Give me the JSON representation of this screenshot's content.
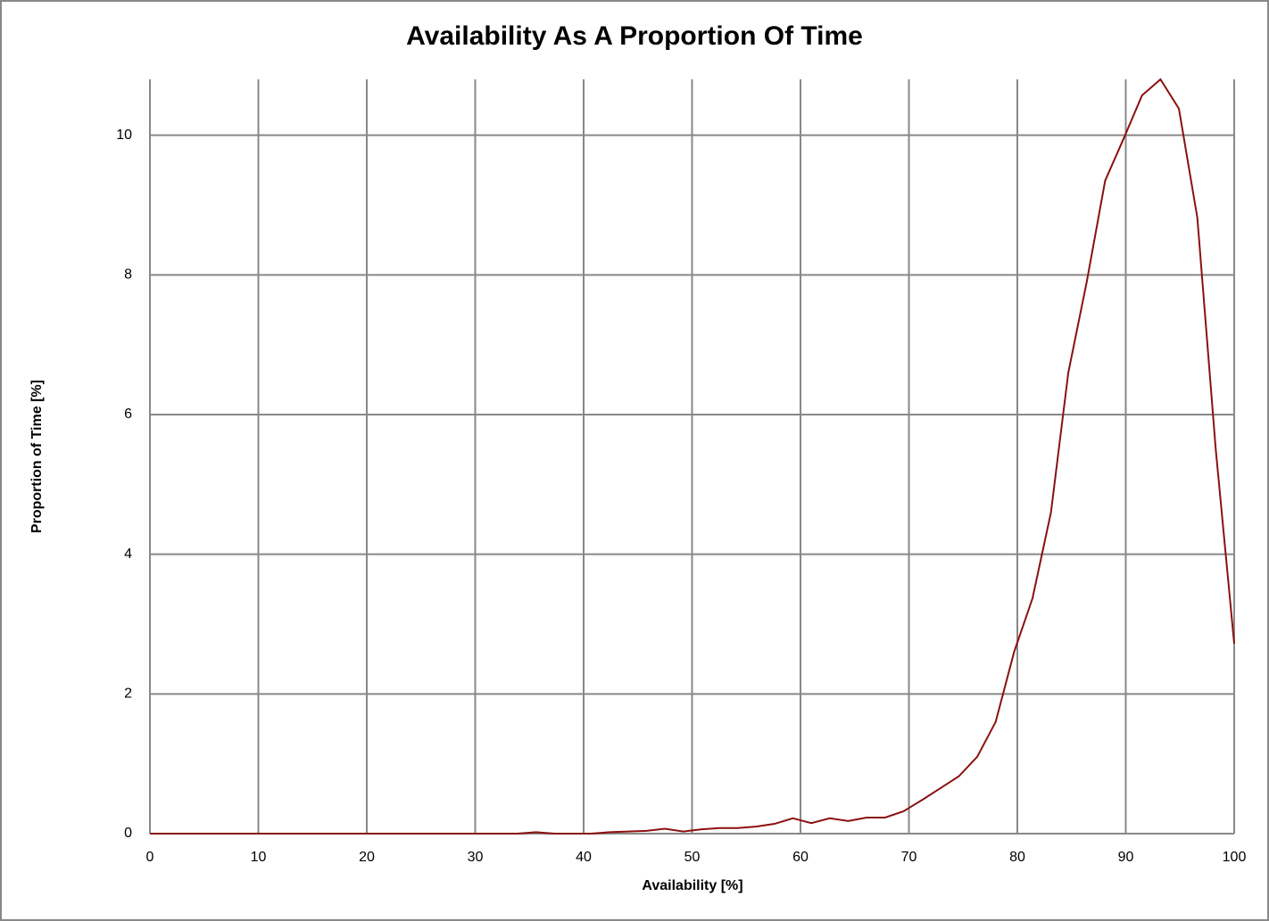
{
  "chart_data": {
    "type": "line",
    "title": "Availability As A Proportion Of Time",
    "x_label": "Availability [%]",
    "y_label": "Proportion of Time [%]",
    "x": [
      0,
      1.7,
      3.4,
      5.1,
      6.8,
      8.5,
      10.2,
      11.9,
      13.6,
      15.3,
      16.9,
      18.6,
      20.3,
      22.0,
      23.7,
      25.4,
      27.1,
      28.8,
      30.5,
      32.2,
      33.9,
      35.6,
      37.3,
      39.0,
      40.7,
      42.4,
      44.1,
      45.8,
      47.5,
      49.2,
      50.8,
      52.5,
      54.2,
      55.9,
      57.6,
      59.3,
      61.0,
      62.7,
      64.4,
      66.1,
      67.8,
      69.5,
      71.2,
      72.9,
      74.6,
      76.3,
      78.0,
      79.7,
      81.4,
      83.1,
      84.7,
      86.4,
      88.1,
      89.8,
      91.5,
      93.2,
      94.9,
      96.6,
      98.3,
      100
    ],
    "series": [
      {
        "color": "#8b1010",
        "values": [
          0,
          0,
          0,
          0,
          0,
          0,
          0,
          0,
          0,
          0,
          0,
          0,
          0,
          0,
          0,
          0,
          0,
          0,
          0,
          0,
          0,
          0.02,
          0,
          0,
          0,
          0.02,
          0.03,
          0.04,
          0.07,
          0.03,
          0.06,
          0.08,
          0.08,
          0.1,
          0.14,
          0.22,
          0.15,
          0.22,
          0.18,
          0.23,
          0.23,
          0.32,
          0.48,
          0.65,
          0.82,
          1.1,
          1.6,
          2.6,
          3.37,
          4.6,
          6.6,
          7.9,
          9.35,
          9.95,
          10.57,
          10.8,
          10.38,
          8.82,
          5.5,
          2.72
        ]
      }
    ],
    "xlim": [
      0,
      100
    ],
    "xticks": [
      0,
      10,
      20,
      30,
      40,
      50,
      60,
      70,
      80,
      90,
      100
    ],
    "ylim": [
      0,
      10.8
    ],
    "yticks": [
      0,
      2,
      4,
      6,
      8,
      10
    ],
    "grid": true
  }
}
